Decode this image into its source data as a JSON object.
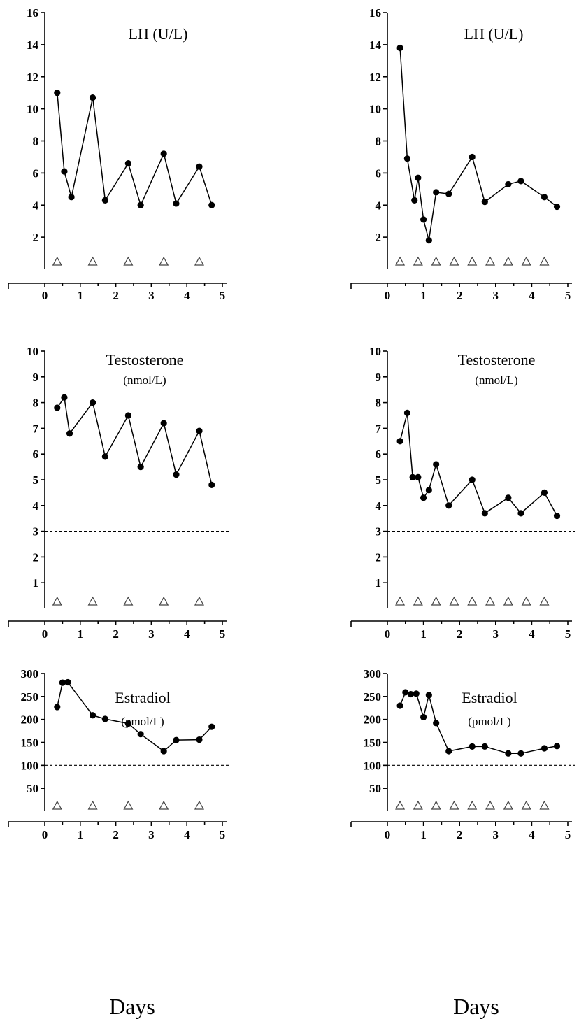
{
  "chart_data": [
    {
      "id": "lh-left",
      "type": "line",
      "title": "LH",
      "subtitle": "(U/L)",
      "title_inline": true,
      "xlabel": "",
      "ylim": [
        0,
        16
      ],
      "yticks": [
        2,
        4,
        6,
        8,
        10,
        12,
        14,
        16
      ],
      "xlim": [
        0,
        5
      ],
      "xticks": [
        0,
        1,
        2,
        3,
        4,
        5
      ],
      "x": [
        0.35,
        0.55,
        0.75,
        1.35,
        1.7,
        2.35,
        2.7,
        3.35,
        3.7,
        4.35,
        4.7
      ],
      "y": [
        11.0,
        6.1,
        4.5,
        10.7,
        4.3,
        6.6,
        4.0,
        7.2,
        4.1,
        6.4,
        4.0
      ],
      "reference_line": null,
      "markers": [
        0.35,
        1.35,
        2.35,
        3.35,
        4.35
      ]
    },
    {
      "id": "lh-right",
      "type": "line",
      "title": "LH",
      "subtitle": "(U/L)",
      "title_inline": true,
      "xlabel": "",
      "ylim": [
        0,
        16
      ],
      "yticks": [
        2,
        4,
        6,
        8,
        10,
        12,
        14,
        16
      ],
      "xlim": [
        0,
        5
      ],
      "xticks": [
        0,
        1,
        2,
        3,
        4,
        5
      ],
      "x": [
        0.35,
        0.55,
        0.75,
        0.85,
        1.0,
        1.15,
        1.35,
        1.7,
        2.35,
        2.7,
        3.35,
        3.7,
        4.35,
        4.7
      ],
      "y": [
        13.8,
        6.9,
        4.3,
        5.7,
        3.1,
        1.8,
        4.8,
        4.7,
        7.0,
        4.2,
        5.3,
        5.5,
        4.5,
        3.9
      ],
      "reference_line": null,
      "markers": [
        0.35,
        0.85,
        1.35,
        1.85,
        2.35,
        2.85,
        3.35,
        3.85,
        4.35
      ]
    },
    {
      "id": "t-left",
      "type": "line",
      "title": "Testosterone",
      "subtitle": "(nmol/L)",
      "title_inline": false,
      "xlabel": "",
      "ylim": [
        0,
        10
      ],
      "yticks": [
        1,
        2,
        3,
        4,
        5,
        6,
        7,
        8,
        9,
        10
      ],
      "xlim": [
        0,
        5
      ],
      "xticks": [
        0,
        1,
        2,
        3,
        4,
        5
      ],
      "x": [
        0.35,
        0.55,
        0.7,
        1.35,
        1.7,
        2.35,
        2.7,
        3.35,
        3.7,
        4.35,
        4.7
      ],
      "y": [
        7.8,
        8.2,
        6.8,
        8.0,
        5.9,
        7.5,
        5.5,
        7.2,
        5.2,
        6.9,
        4.8
      ],
      "reference_line": 3,
      "markers": [
        0.35,
        1.35,
        2.35,
        3.35,
        4.35
      ]
    },
    {
      "id": "t-right",
      "type": "line",
      "title": "Testosterone",
      "subtitle": "(nmol/L)",
      "title_inline": false,
      "xlabel": "",
      "ylim": [
        0,
        10
      ],
      "yticks": [
        1,
        2,
        3,
        4,
        5,
        6,
        7,
        8,
        9,
        10
      ],
      "xlim": [
        0,
        5
      ],
      "xticks": [
        0,
        1,
        2,
        3,
        4,
        5
      ],
      "x": [
        0.35,
        0.55,
        0.7,
        0.85,
        1.0,
        1.15,
        1.35,
        1.7,
        2.35,
        2.7,
        3.35,
        3.7,
        4.35,
        4.7
      ],
      "y": [
        6.5,
        7.6,
        5.1,
        5.1,
        4.3,
        4.6,
        5.6,
        4.0,
        5.0,
        3.7,
        4.3,
        3.7,
        4.5,
        3.6
      ],
      "reference_line": 3,
      "markers": [
        0.35,
        0.85,
        1.35,
        1.85,
        2.35,
        2.85,
        3.35,
        3.85,
        4.35
      ]
    },
    {
      "id": "e-left",
      "type": "line",
      "title": "Estradiol",
      "subtitle": "(pmol/L)",
      "title_inline": false,
      "xlabel": "Days",
      "ylim": [
        0,
        300
      ],
      "yticks": [
        50,
        100,
        150,
        200,
        250,
        300
      ],
      "xlim": [
        0,
        5
      ],
      "xticks": [
        0,
        1,
        2,
        3,
        4,
        5
      ],
      "x": [
        0.35,
        0.5,
        0.65,
        1.35,
        1.7,
        2.35,
        2.7,
        3.35,
        3.7,
        4.35,
        4.7
      ],
      "y": [
        227,
        280,
        281,
        209,
        201,
        191,
        168,
        131,
        155,
        156,
        184
      ],
      "reference_line": 100,
      "markers": [
        0.35,
        1.35,
        2.35,
        3.35,
        4.35
      ]
    },
    {
      "id": "e-right",
      "type": "line",
      "title": "Estradiol",
      "subtitle": "(pmol/L)",
      "title_inline": false,
      "xlabel": "Days",
      "ylim": [
        0,
        300
      ],
      "yticks": [
        50,
        100,
        150,
        200,
        250,
        300
      ],
      "xlim": [
        0,
        5
      ],
      "xticks": [
        0,
        1,
        2,
        3,
        4,
        5
      ],
      "x": [
        0.35,
        0.5,
        0.65,
        0.8,
        1.0,
        1.15,
        1.35,
        1.7,
        2.35,
        2.7,
        3.35,
        3.7,
        4.35,
        4.7
      ],
      "y": [
        230,
        259,
        255,
        256,
        205,
        253,
        192,
        131,
        141,
        141,
        126,
        126,
        137,
        142
      ],
      "reference_line": 100,
      "markers": [
        0.35,
        0.85,
        1.35,
        1.85,
        2.35,
        2.85,
        3.35,
        3.85,
        4.35
      ]
    }
  ]
}
